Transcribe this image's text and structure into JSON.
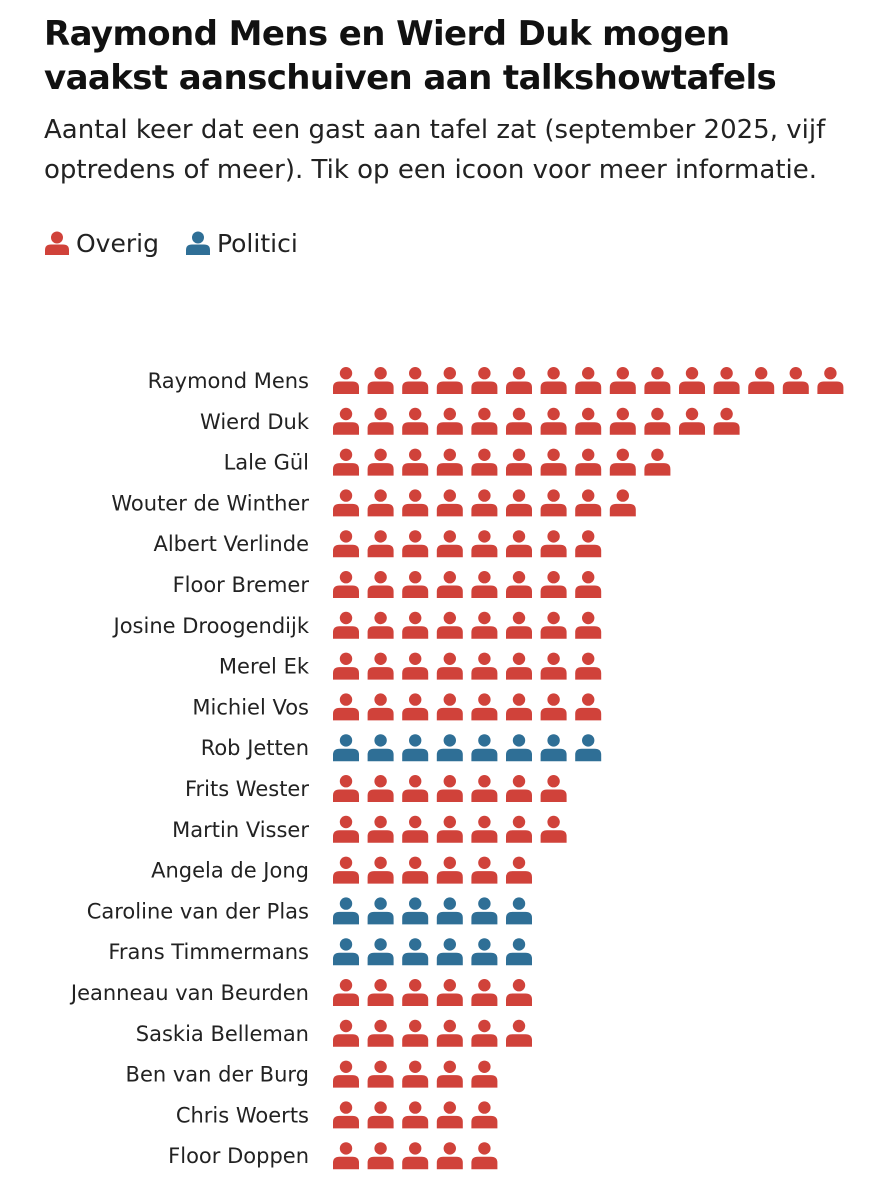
{
  "header": {
    "title": "Raymond Mens en Wierd Duk mogen vaakst aanschuiven aan talkshowtafels",
    "subtitle": "Aantal keer dat een gast aan tafel zat (september 2025, vijf optredens of meer). Tik op een icoon voor meer informatie."
  },
  "legend": {
    "overig": "Overig",
    "politici": "Politici"
  },
  "colors": {
    "overig": "#d0423a",
    "politici": "#2f6f96"
  },
  "chart_data": {
    "type": "pictogram",
    "title": "Raymond Mens en Wierd Duk mogen vaakst aanschuiven aan talkshowtafels",
    "unit": "optredens",
    "series": [
      {
        "name": "Overig"
      },
      {
        "name": "Politici"
      }
    ],
    "rows": [
      {
        "name": "Raymond Mens",
        "value": 15,
        "group": "Overig"
      },
      {
        "name": "Wierd Duk",
        "value": 12,
        "group": "Overig"
      },
      {
        "name": "Lale Gül",
        "value": 10,
        "group": "Overig"
      },
      {
        "name": "Wouter de Winther",
        "value": 9,
        "group": "Overig"
      },
      {
        "name": "Albert Verlinde",
        "value": 8,
        "group": "Overig"
      },
      {
        "name": "Floor Bremer",
        "value": 8,
        "group": "Overig"
      },
      {
        "name": "Josine Droogendijk",
        "value": 8,
        "group": "Overig"
      },
      {
        "name": "Merel Ek",
        "value": 8,
        "group": "Overig"
      },
      {
        "name": "Michiel Vos",
        "value": 8,
        "group": "Overig"
      },
      {
        "name": "Rob Jetten",
        "value": 8,
        "group": "Politici"
      },
      {
        "name": "Frits Wester",
        "value": 7,
        "group": "Overig"
      },
      {
        "name": "Martin Visser",
        "value": 7,
        "group": "Overig"
      },
      {
        "name": "Angela de Jong",
        "value": 6,
        "group": "Overig"
      },
      {
        "name": "Caroline van der Plas",
        "value": 6,
        "group": "Politici"
      },
      {
        "name": "Frans Timmermans",
        "value": 6,
        "group": "Politici"
      },
      {
        "name": "Jeanneau van Beurden",
        "value": 6,
        "group": "Overig"
      },
      {
        "name": "Saskia Belleman",
        "value": 6,
        "group": "Overig"
      },
      {
        "name": "Ben van der Burg",
        "value": 5,
        "group": "Overig"
      },
      {
        "name": "Chris Woerts",
        "value": 5,
        "group": "Overig"
      },
      {
        "name": "Floor Doppen",
        "value": 5,
        "group": "Overig"
      }
    ]
  }
}
